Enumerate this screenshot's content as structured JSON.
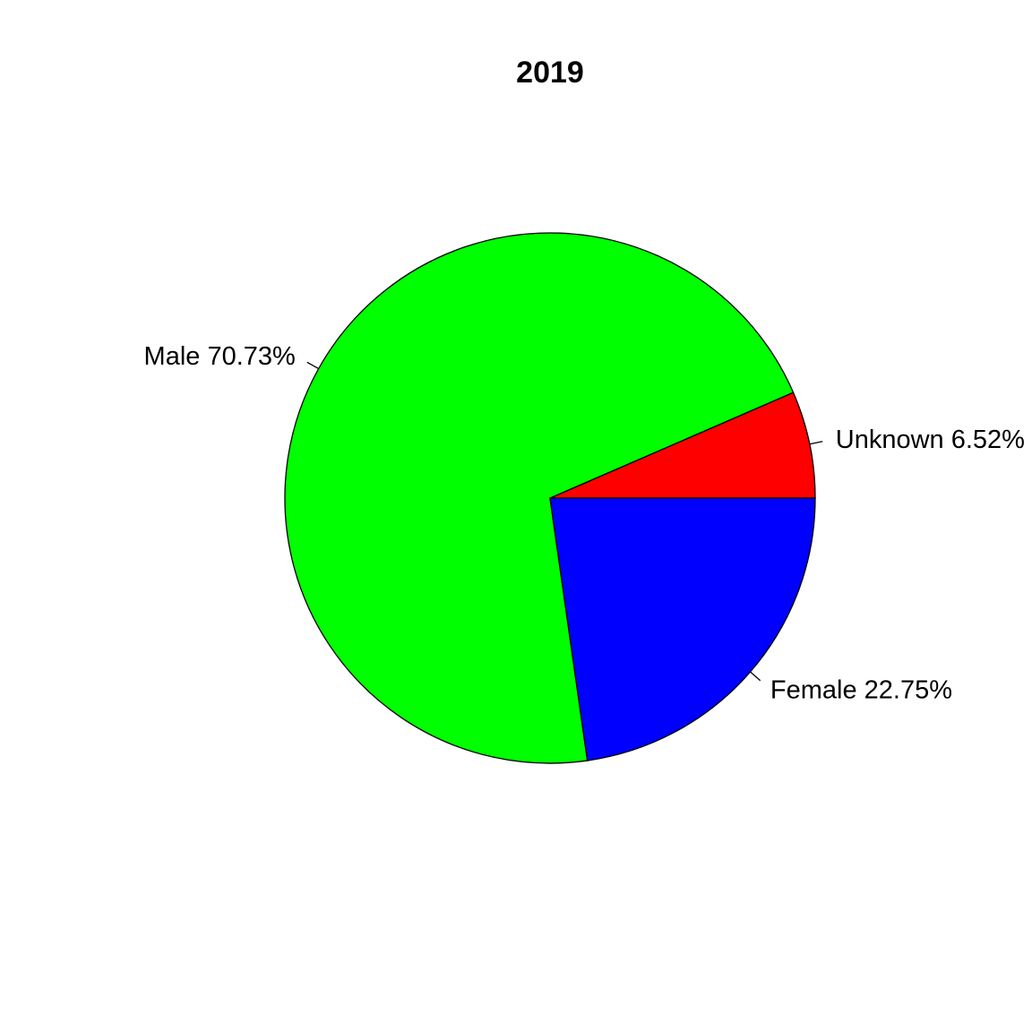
{
  "chart_data": {
    "type": "pie",
    "title": "2019",
    "start_angle_deg": 0,
    "direction": "counterclockwise",
    "slices": [
      {
        "label": "Unknown 6.52%",
        "category": "Unknown",
        "percent": 6.52,
        "color": "#FF0000"
      },
      {
        "label": "Male 70.73%",
        "category": "Male",
        "percent": 70.73,
        "color": "#00FF00"
      },
      {
        "label": "Female 22.75%",
        "category": "Female",
        "percent": 22.75,
        "color": "#0000FF"
      }
    ],
    "legend": "none",
    "grid": false
  }
}
